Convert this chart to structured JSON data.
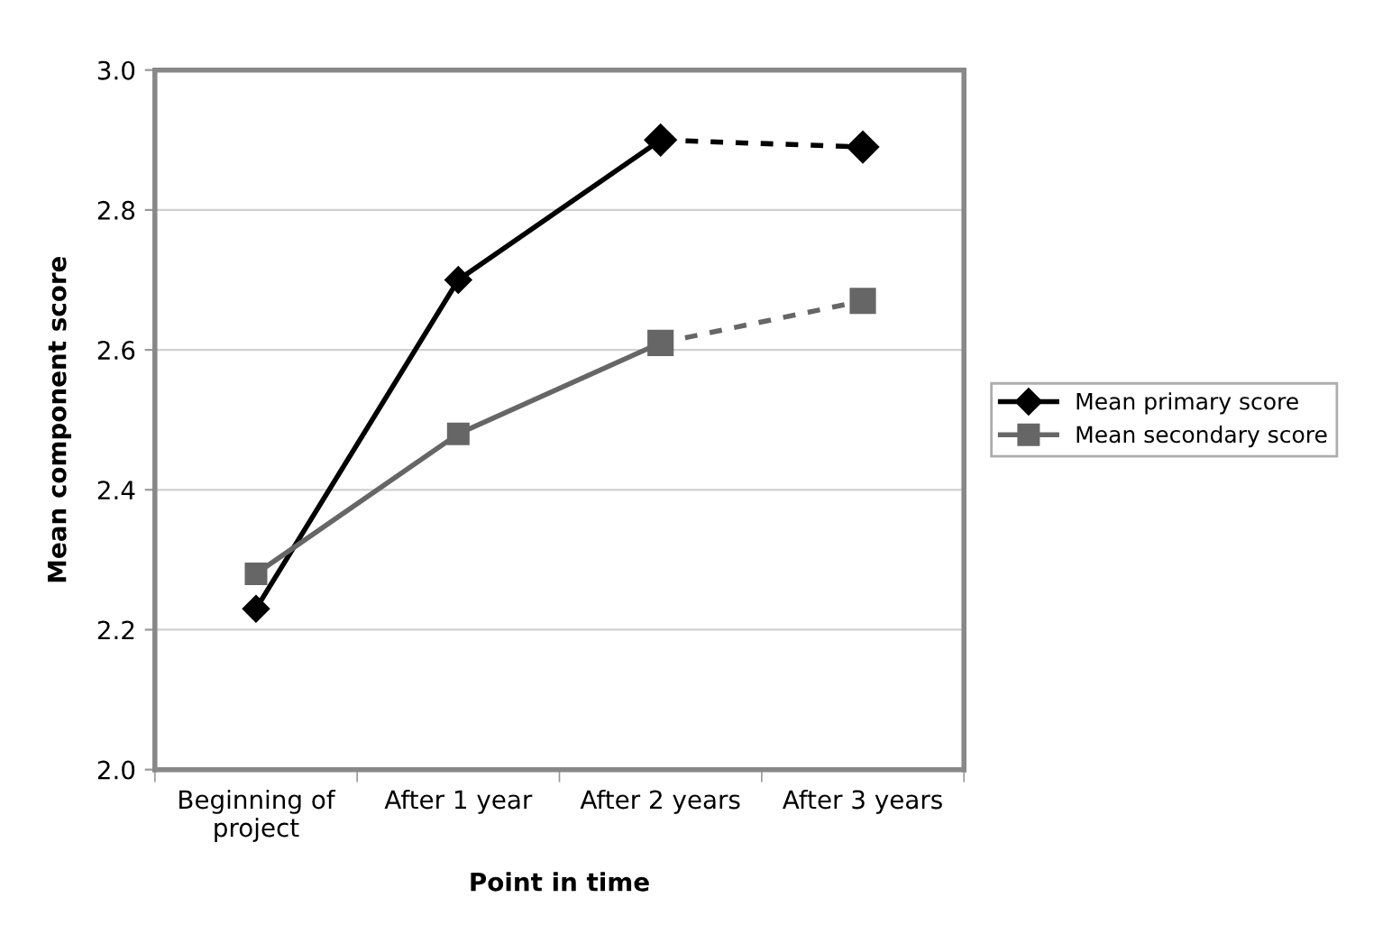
{
  "chart_data": {
    "type": "line",
    "xlabel": "Point in time",
    "ylabel": "Mean component score",
    "categories": [
      "Beginning of project",
      "After 1 year",
      "After 2 years",
      "After 3 years"
    ],
    "series": [
      {
        "name": "Mean primary score",
        "color": "#000000",
        "marker": "diamond",
        "line_style": "solid",
        "values": [
          2.23,
          2.7,
          2.9,
          null
        ]
      },
      {
        "color": "#000000",
        "marker": "diamond",
        "line_style": "dotted",
        "values": [
          null,
          null,
          2.9,
          2.89
        ]
      },
      {
        "name": "Mean secondary score",
        "color": "#666666",
        "marker": "square",
        "line_style": "solid",
        "values": [
          2.28,
          2.48,
          2.61,
          null
        ]
      },
      {
        "color": "#666666",
        "marker": "square",
        "line_style": "dotted",
        "values": [
          null,
          null,
          2.61,
          2.67
        ]
      }
    ],
    "ylim": [
      2.0,
      3.0
    ],
    "yticks": [
      {
        "value": 2.0,
        "label": "2.0"
      },
      2.2,
      2.4,
      2.6,
      2.8,
      {
        "value": 3.0,
        "label": "3.0"
      }
    ],
    "grid": "y",
    "legend": "right"
  }
}
